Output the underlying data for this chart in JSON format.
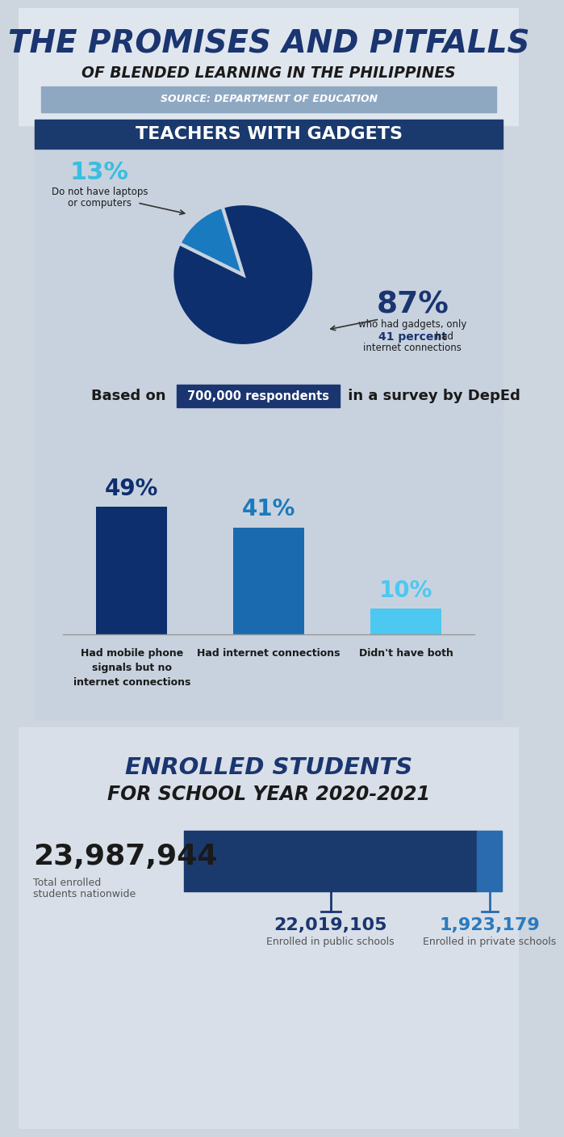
{
  "title_line1": "THE PROMISES AND PITFALLS",
  "title_line2": "OF BLENDED LEARNING IN THE PHILIPPINES",
  "source": "SOURCE: DEPARTMENT OF EDUCATION",
  "section1_title": "TEACHERS WITH GADGETS",
  "pie_values": [
    87,
    13
  ],
  "pie_colors": [
    "#0d2f6e",
    "#1a7abf"
  ],
  "pie_label_87": "87%",
  "pie_text_87a": "who had gadgets, only",
  "pie_text_87b": "41 percent",
  "pie_text_87c": "had",
  "pie_text_87d": "internet connections",
  "pie_label_13": "13%",
  "pie_text_13a": "Do not have laptops",
  "pie_text_13b": "or computers",
  "respondents_text1": "Based on",
  "respondents_highlight": "700,000 respondents",
  "respondents_text2": "in a survey by DepEd",
  "bar_labels": [
    "Had mobile phone\nsignals but no\ninternet connections",
    "Had internet connections",
    "Didn't have both"
  ],
  "bar_values": [
    49,
    41,
    10
  ],
  "bar_colors": [
    "#0d2f6e",
    "#1a6ab0",
    "#4dc8f0"
  ],
  "bar_pct_labels": [
    "49%",
    "41%",
    "10%"
  ],
  "bar_pct_colors": [
    "#0d2f6e",
    "#1a7abf",
    "#4dc8f0"
  ],
  "section2_title_line1": "ENROLLED STUDENTS",
  "section2_title_line2": "FOR SCHOOL YEAR 2020-2021",
  "total_enrolled_num": "23,987,944",
  "total_enrolled_label": "Total enrolled\nstudents nationwide",
  "enrolled_public_num": "22,019,105",
  "enrolled_public_label": "Enrolled in public schools",
  "enrolled_private_num": "1,923,179",
  "enrolled_private_label": "Enrolled in private schools",
  "enrolled_public_val": 22019105,
  "enrolled_private_val": 1923179,
  "enrolled_total_val": 23987944,
  "bg_color": "#cdd5de",
  "header_bg": "#e0e6ee",
  "section_header_bg": "#1a3a6e",
  "source_bg": "#8fa8c2",
  "pie_section_bg": "#c8d2de",
  "bar_section_bg": "#c8d2de",
  "enroll_section_bg": "#d8dfe8",
  "enroll_bar_dark": "#1a3a6e",
  "enroll_bar_light": "#2a6aae"
}
